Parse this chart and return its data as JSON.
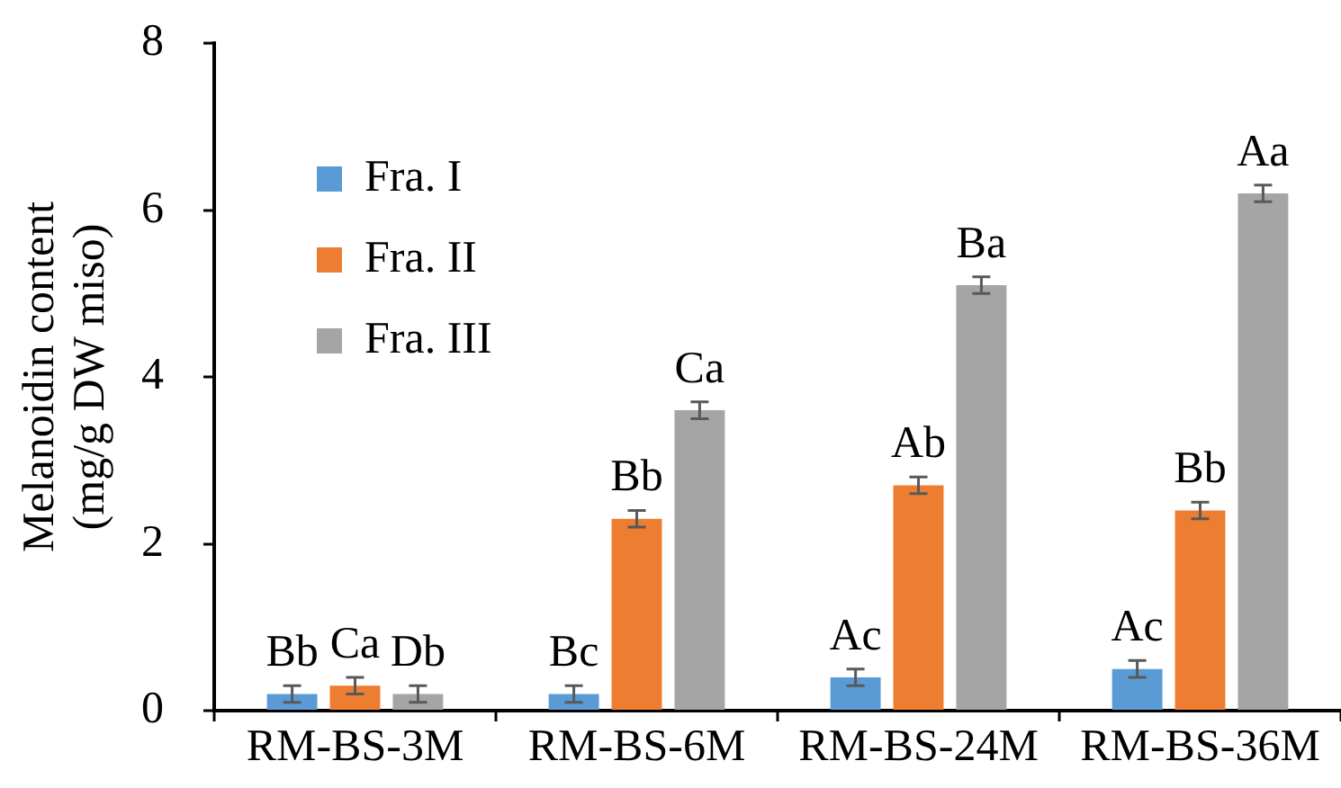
{
  "chart_data": {
    "type": "bar",
    "ylabel": "Melanoidin content (mg/g DW miso)",
    "categories": [
      "RM-BS-3M",
      "RM-BS-6M",
      "RM-BS-24M",
      "RM-BS-36M"
    ],
    "series": [
      {
        "name": "Fra. I",
        "color": "#5b9bd5",
        "values": [
          0.2,
          0.2,
          0.4,
          0.5
        ],
        "errors": [
          0.1,
          0.1,
          0.1,
          0.1
        ],
        "value_labels": [
          "Bb",
          "Bc",
          "Ac",
          "Ac"
        ]
      },
      {
        "name": "Fra. II",
        "color": "#ed7d31",
        "values": [
          0.3,
          2.3,
          2.7,
          2.4
        ],
        "errors": [
          0.1,
          0.1,
          0.1,
          0.1
        ],
        "value_labels": [
          "Ca",
          "Bb",
          "Ab",
          "Bb"
        ]
      },
      {
        "name": "Fra. III",
        "color": "#a5a5a5",
        "values": [
          0.2,
          3.6,
          5.1,
          6.2
        ],
        "errors": [
          0.1,
          0.1,
          0.1,
          0.1
        ],
        "value_labels": [
          "Db",
          "Ca",
          "Ba",
          "Aa"
        ]
      }
    ],
    "ylim": [
      0,
      8
    ],
    "yticks": [
      0,
      2,
      4,
      6,
      8
    ],
    "legend": "top left"
  }
}
